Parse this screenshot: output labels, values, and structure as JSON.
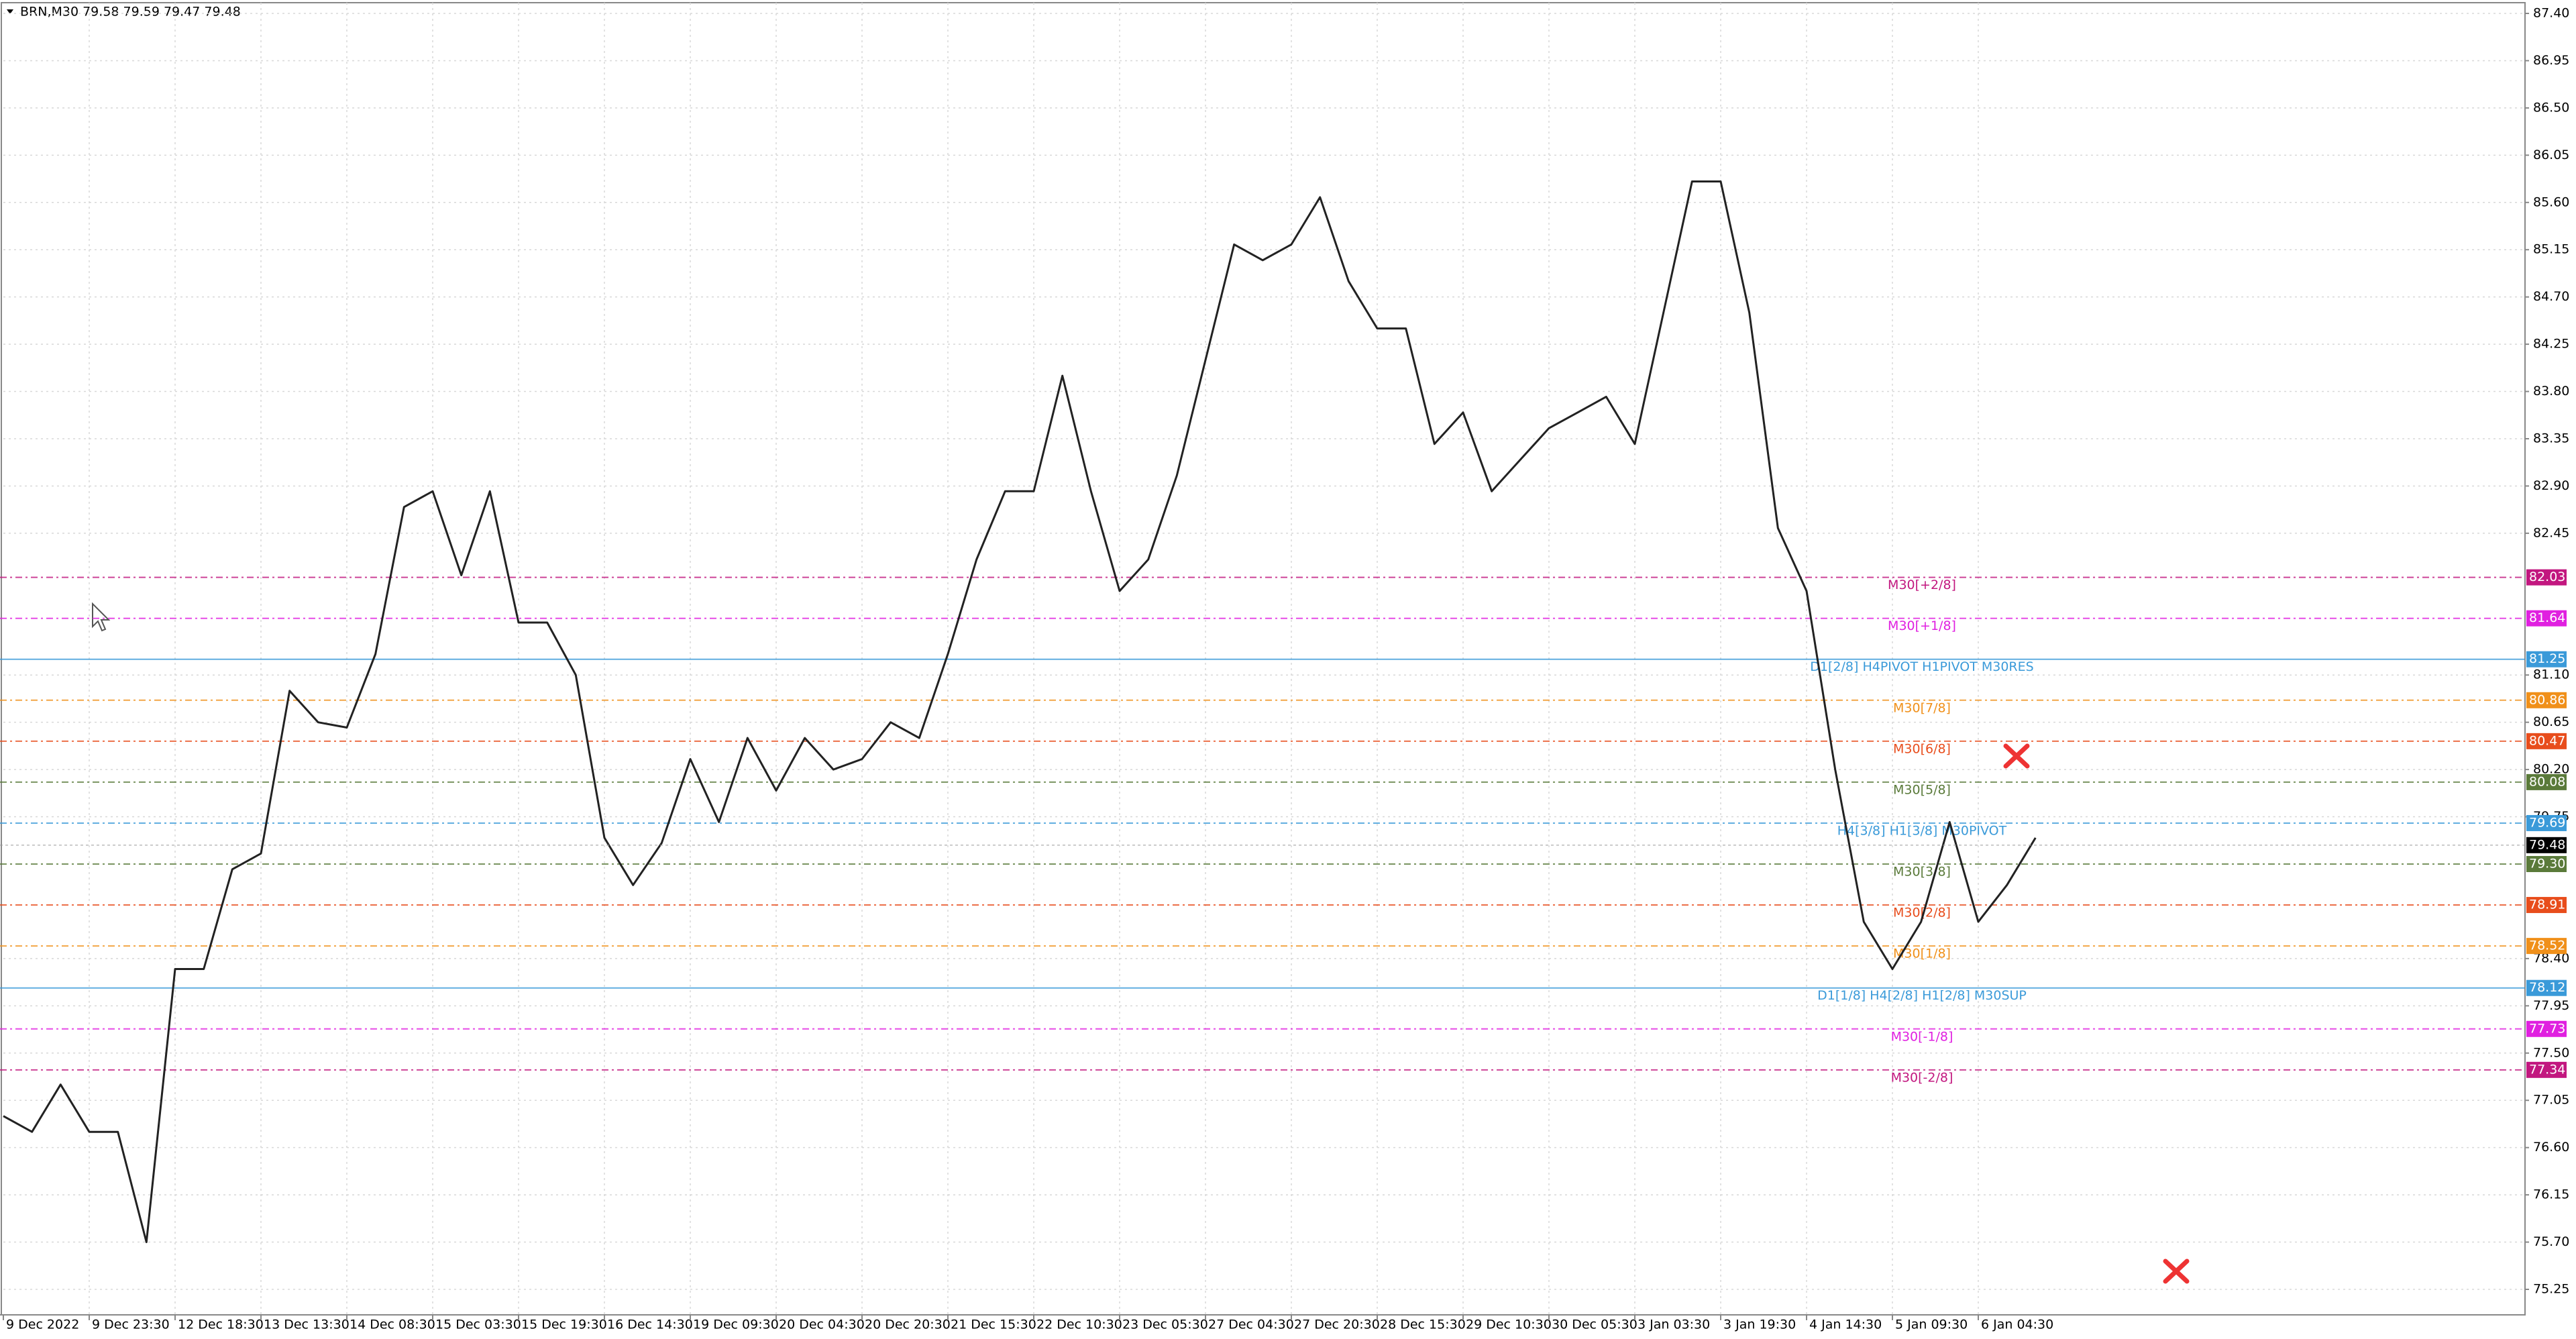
{
  "chart_data": {
    "type": "line",
    "title": "BRN,M30 79.58 79.59 79.47 79.48",
    "color": "#222222",
    "grid": true,
    "ylim": [
      75.25,
      87.4
    ],
    "yticks": [
      {
        "value": 87.4,
        "label": "87.40"
      },
      86.95,
      {
        "value": 86.5,
        "label": "86.50"
      },
      86.05,
      {
        "value": 85.6,
        "label": "85.60"
      },
      85.15,
      {
        "value": 84.7,
        "label": "84.70"
      },
      84.25,
      {
        "value": 83.8,
        "label": "83.80"
      },
      83.35,
      {
        "value": 82.9,
        "label": "82.90"
      },
      82.45,
      {
        "value": 81.1,
        "label": "81.10"
      },
      80.65,
      {
        "value": 80.2,
        "label": "80.20"
      },
      79.75,
      {
        "value": 78.4,
        "label": "78.40"
      },
      77.95,
      {
        "value": 77.5,
        "label": "77.50"
      },
      77.05,
      {
        "value": 76.6,
        "label": "76.60"
      },
      76.15,
      {
        "value": 75.7,
        "label": "75.70"
      },
      75.25
    ],
    "categories": [
      "9 Dec 2022",
      null,
      null,
      "9 Dec 23:30",
      null,
      null,
      "12 Dec 18:30",
      null,
      null,
      "13 Dec 13:30",
      null,
      null,
      "14 Dec 08:30",
      null,
      null,
      "15 Dec 03:30",
      null,
      null,
      "15 Dec 19:30",
      null,
      null,
      "16 Dec 14:30",
      null,
      null,
      "19 Dec 09:30",
      null,
      null,
      "20 Dec 04:30",
      null,
      null,
      "20 Dec 20:30",
      null,
      null,
      "21 Dec 15:30",
      null,
      null,
      "22 Dec 10:30",
      null,
      null,
      "23 Dec 05:30",
      null,
      null,
      "27 Dec 04:30",
      null,
      null,
      "27 Dec 20:30",
      null,
      null,
      "28 Dec 15:30",
      null,
      null,
      "29 Dec 10:30",
      null,
      null,
      "30 Dec 05:30",
      null,
      null,
      "3 Jan 03:30",
      null,
      null,
      "3 Jan 19:30",
      null,
      null,
      "4 Jan 14:30",
      null,
      null,
      "5 Jan 09:30",
      null,
      null,
      "6 Jan 04:30",
      null,
      null
    ],
    "values": [
      76.9,
      76.75,
      77.2,
      76.75,
      76.75,
      75.7,
      78.3,
      78.3,
      79.25,
      79.4,
      80.95,
      80.65,
      80.6,
      81.3,
      82.7,
      82.85,
      82.05,
      82.85,
      81.6,
      81.6,
      81.1,
      79.55,
      79.1,
      79.5,
      80.3,
      79.7,
      80.5,
      80.0,
      80.5,
      80.2,
      80.3,
      80.65,
      80.5,
      81.3,
      82.2,
      82.85,
      82.85,
      83.95,
      82.85,
      81.9,
      82.2,
      83.0,
      84.1,
      85.2,
      85.05,
      85.2,
      85.65,
      84.85,
      84.4,
      84.4,
      83.3,
      83.6,
      82.85,
      83.15,
      83.45,
      83.6,
      83.75,
      83.3,
      84.55,
      85.8,
      85.8,
      84.55,
      82.5,
      81.9,
      80.2,
      78.75,
      78.3,
      78.75,
      79.7,
      78.75,
      79.1,
      79.55
    ],
    "levels": [
      {
        "label": "M30[+2/8]",
        "value": 82.03,
        "color": "#c2177f"
      },
      {
        "label": "M30[+1/8]",
        "value": 81.64,
        "color": "#e020e0"
      },
      {
        "label": "D1[2/8] H4PIVOT H1PIVOT M30RES",
        "value": 81.25,
        "color": "#3a9ad9"
      },
      {
        "label": "M30[7/8]",
        "value": 80.86,
        "color": "#f0901a"
      },
      {
        "label": "M30[6/8]",
        "value": 80.47,
        "color": "#e84d1c"
      },
      {
        "label": "M30[5/8]",
        "value": 80.08,
        "color": "#5a7a3a"
      },
      {
        "label": "H4[3/8] H1[3/8] M30PIVOT",
        "value": 79.69,
        "color": "#3a9ad9"
      },
      {
        "label": "M30[3/8]",
        "value": 79.3,
        "value_label": "79.30",
        "color": "#5a7a3a"
      },
      {
        "label": "M30[2/8]",
        "value": 78.91,
        "color": "#e84d1c"
      },
      {
        "label": "M30[1/8]",
        "value": 78.52,
        "color": "#f0901a"
      },
      {
        "label": "D1[1/8] H4[2/8] H1[2/8] M30SUP",
        "value": 78.12,
        "color": "#3a9ad9"
      },
      {
        "label": "M30[-1/8]",
        "value": 77.73,
        "color": "#e020e0"
      },
      {
        "label": "M30[-2/8]",
        "value": 77.34,
        "color": "#c2177f"
      }
    ],
    "last": {
      "value": 79.48,
      "color": "#000000"
    }
  }
}
